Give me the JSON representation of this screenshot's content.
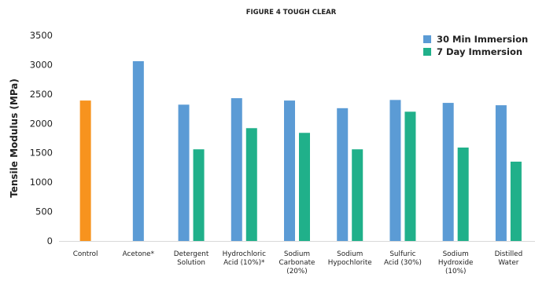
{
  "chart_data": {
    "type": "bar",
    "title": "FIGURE 4 TOUGH CLEAR",
    "ylabel": "Tensile Modulus (MPa)",
    "xlabel": "",
    "ylim": [
      0,
      3500
    ],
    "yticks": [
      0,
      500,
      1000,
      1500,
      2000,
      2500,
      3000,
      3500
    ],
    "grid": false,
    "legend_position": "top-right",
    "categories": [
      "Control",
      "Acetone*",
      "Detergent Solution",
      "Hydrochloric Acid (10%)*",
      "Sodium Carbonate (20%)",
      "Sodium Hypochlorite",
      "Sulfuric Acid (30%)",
      "Sodium Hydroxide (10%)",
      "Distilled Water"
    ],
    "category_lines": [
      [
        "Control"
      ],
      [
        "Acetone*"
      ],
      [
        "Detergent",
        "Solution"
      ],
      [
        "Hydrochloric",
        "Acid (10%)*"
      ],
      [
        "Sodium",
        "Carbonate",
        "(20%)"
      ],
      [
        "Sodium",
        "Hypochlorite"
      ],
      [
        "Sulfuric",
        "Acid (30%)"
      ],
      [
        "Sodium",
        "Hydroxide",
        "(10%)"
      ],
      [
        "Distilled",
        "Water"
      ]
    ],
    "control": {
      "category": "Control",
      "value": 2390,
      "color": "#F7931E"
    },
    "series": [
      {
        "name": "30 Min Immersion",
        "color": "#5B9BD5",
        "values": [
          null,
          3060,
          2320,
          2430,
          2390,
          2260,
          2400,
          2350,
          2310
        ]
      },
      {
        "name": "7 Day Immersion",
        "color": "#20B08A",
        "values": [
          null,
          null,
          1560,
          1920,
          1840,
          1560,
          2200,
          1590,
          1350
        ]
      }
    ]
  }
}
